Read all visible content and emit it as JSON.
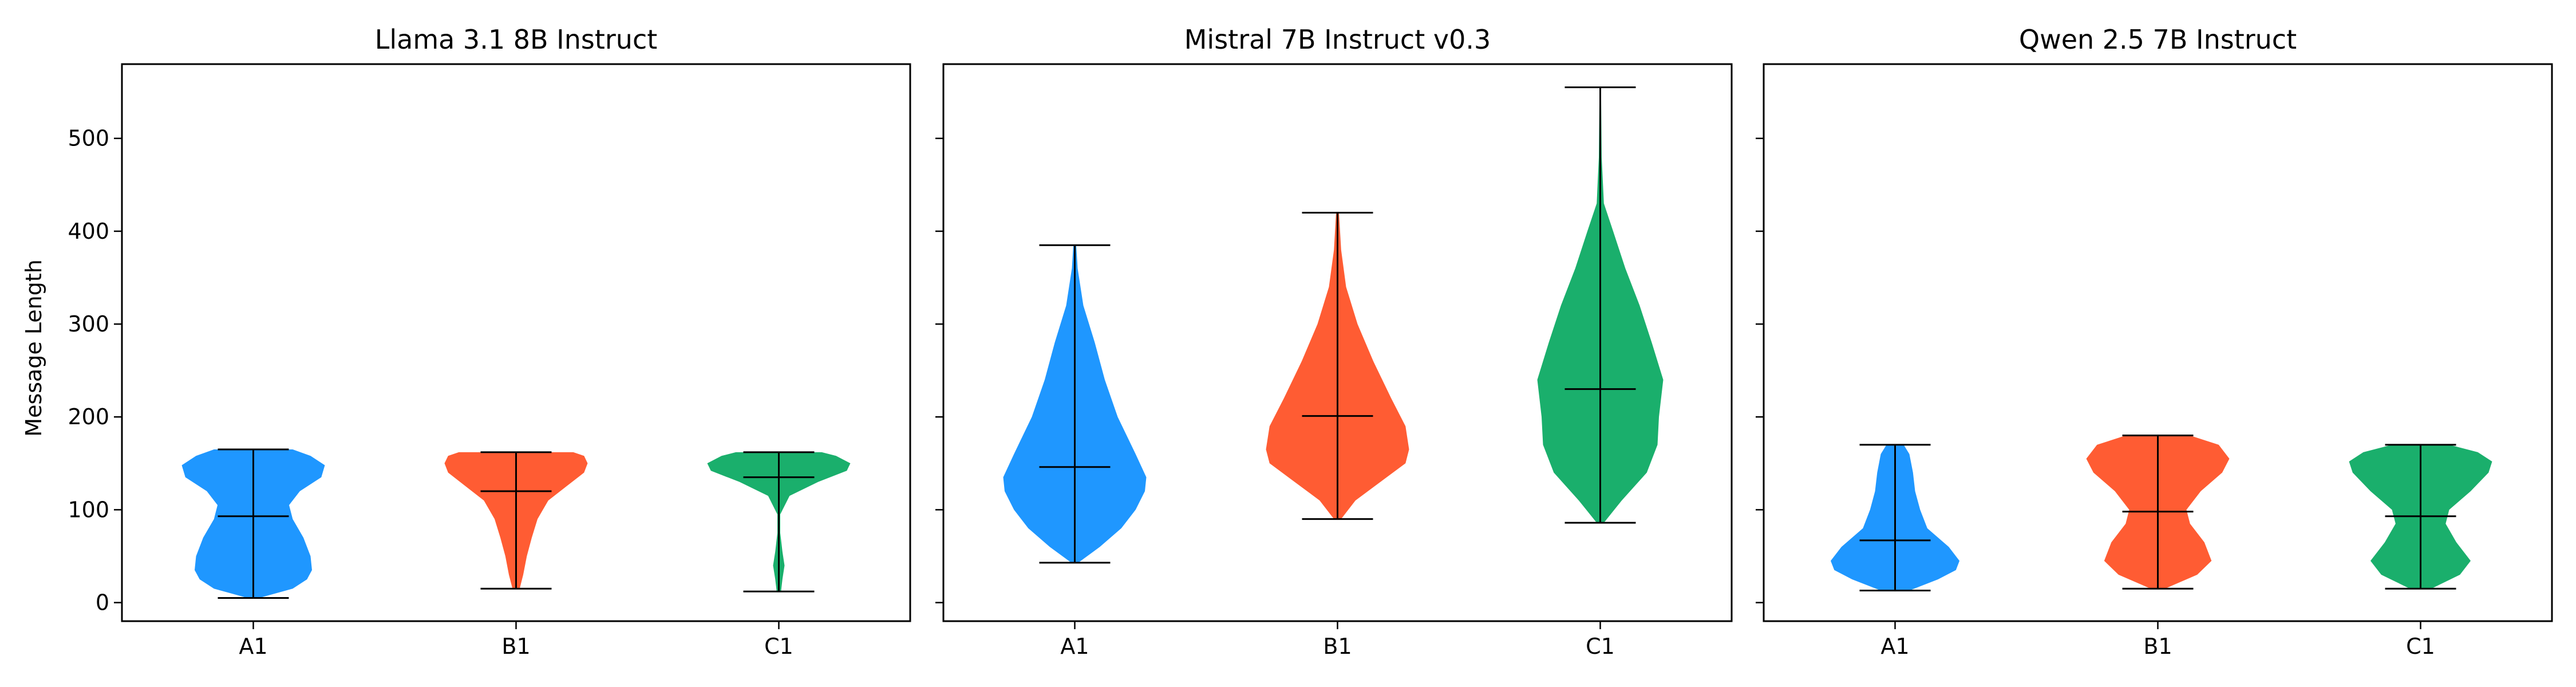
{
  "chart_data": {
    "type": "violin",
    "ylabel": "Message Length",
    "ylim": [
      -20,
      580
    ],
    "yticks": [
      0,
      100,
      200,
      300,
      400,
      500
    ],
    "categories": [
      "A1",
      "B1",
      "C1"
    ],
    "colors": {
      "A1": "#1f97ff",
      "B1": "#ff5c33",
      "C1": "#1aaf6c"
    },
    "panels": [
      {
        "title": "Llama 3.1 8B Instruct",
        "series": [
          {
            "category": "A1",
            "min": 5,
            "max": 165,
            "median": 93,
            "profile": [
              [
                5,
                0.08
              ],
              [
                15,
                0.55
              ],
              [
                25,
                0.75
              ],
              [
                35,
                0.82
              ],
              [
                50,
                0.8
              ],
              [
                70,
                0.7
              ],
              [
                90,
                0.55
              ],
              [
                105,
                0.5
              ],
              [
                120,
                0.65
              ],
              [
                135,
                0.95
              ],
              [
                148,
                1.0
              ],
              [
                158,
                0.8
              ],
              [
                165,
                0.55
              ]
            ]
          },
          {
            "category": "B1",
            "min": 15,
            "max": 162,
            "median": 120,
            "profile": [
              [
                15,
                0.05
              ],
              [
                30,
                0.1
              ],
              [
                50,
                0.15
              ],
              [
                70,
                0.22
              ],
              [
                90,
                0.3
              ],
              [
                110,
                0.45
              ],
              [
                125,
                0.7
              ],
              [
                140,
                0.95
              ],
              [
                150,
                1.0
              ],
              [
                158,
                0.95
              ],
              [
                162,
                0.8
              ]
            ]
          },
          {
            "category": "C1",
            "min": 12,
            "max": 162,
            "median": 135,
            "profile": [
              [
                12,
                0.03
              ],
              [
                25,
                0.05
              ],
              [
                40,
                0.08
              ],
              [
                55,
                0.05
              ],
              [
                75,
                0.02
              ],
              [
                95,
                0.02
              ],
              [
                115,
                0.15
              ],
              [
                130,
                0.55
              ],
              [
                142,
                0.95
              ],
              [
                150,
                1.0
              ],
              [
                158,
                0.8
              ],
              [
                162,
                0.6
              ]
            ]
          }
        ]
      },
      {
        "title": "Mistral 7B Instruct v0.3",
        "series": [
          {
            "category": "A1",
            "min": 43,
            "max": 385,
            "median": 146,
            "profile": [
              [
                43,
                0.05
              ],
              [
                60,
                0.35
              ],
              [
                80,
                0.65
              ],
              [
                100,
                0.85
              ],
              [
                120,
                0.98
              ],
              [
                135,
                1.0
              ],
              [
                160,
                0.85
              ],
              [
                200,
                0.6
              ],
              [
                240,
                0.42
              ],
              [
                280,
                0.28
              ],
              [
                320,
                0.12
              ],
              [
                360,
                0.04
              ],
              [
                385,
                0.02
              ]
            ]
          },
          {
            "category": "B1",
            "min": 90,
            "max": 420,
            "median": 201,
            "profile": [
              [
                90,
                0.05
              ],
              [
                110,
                0.25
              ],
              [
                130,
                0.6
              ],
              [
                150,
                0.95
              ],
              [
                165,
                1.0
              ],
              [
                190,
                0.95
              ],
              [
                220,
                0.75
              ],
              [
                260,
                0.5
              ],
              [
                300,
                0.28
              ],
              [
                340,
                0.12
              ],
              [
                380,
                0.05
              ],
              [
                420,
                0.02
              ]
            ]
          },
          {
            "category": "C1",
            "min": 86,
            "max": 555,
            "median": 230,
            "profile": [
              [
                86,
                0.05
              ],
              [
                110,
                0.3
              ],
              [
                140,
                0.65
              ],
              [
                170,
                0.8
              ],
              [
                200,
                0.82
              ],
              [
                240,
                0.88
              ],
              [
                280,
                0.72
              ],
              [
                320,
                0.55
              ],
              [
                360,
                0.35
              ],
              [
                400,
                0.18
              ],
              [
                430,
                0.05
              ],
              [
                480,
                0.02
              ],
              [
                555,
                0.01
              ]
            ]
          }
        ]
      },
      {
        "title": "Qwen 2.5 7B Instruct",
        "series": [
          {
            "category": "A1",
            "min": 13,
            "max": 170,
            "median": 67,
            "profile": [
              [
                13,
                0.2
              ],
              [
                25,
                0.6
              ],
              [
                35,
                0.85
              ],
              [
                45,
                0.9
              ],
              [
                60,
                0.75
              ],
              [
                80,
                0.45
              ],
              [
                100,
                0.35
              ],
              [
                120,
                0.28
              ],
              [
                140,
                0.25
              ],
              [
                160,
                0.2
              ],
              [
                170,
                0.12
              ]
            ]
          },
          {
            "category": "B1",
            "min": 15,
            "max": 180,
            "median": 98,
            "profile": [
              [
                15,
                0.1
              ],
              [
                30,
                0.55
              ],
              [
                45,
                0.75
              ],
              [
                65,
                0.65
              ],
              [
                85,
                0.45
              ],
              [
                100,
                0.4
              ],
              [
                120,
                0.6
              ],
              [
                140,
                0.9
              ],
              [
                155,
                1.0
              ],
              [
                170,
                0.85
              ],
              [
                180,
                0.45
              ]
            ]
          },
          {
            "category": "C1",
            "min": 15,
            "max": 170,
            "median": 93,
            "profile": [
              [
                15,
                0.15
              ],
              [
                30,
                0.55
              ],
              [
                45,
                0.7
              ],
              [
                65,
                0.5
              ],
              [
                85,
                0.35
              ],
              [
                100,
                0.4
              ],
              [
                120,
                0.7
              ],
              [
                140,
                0.95
              ],
              [
                152,
                1.0
              ],
              [
                162,
                0.8
              ],
              [
                170,
                0.4
              ]
            ]
          }
        ]
      }
    ]
  }
}
